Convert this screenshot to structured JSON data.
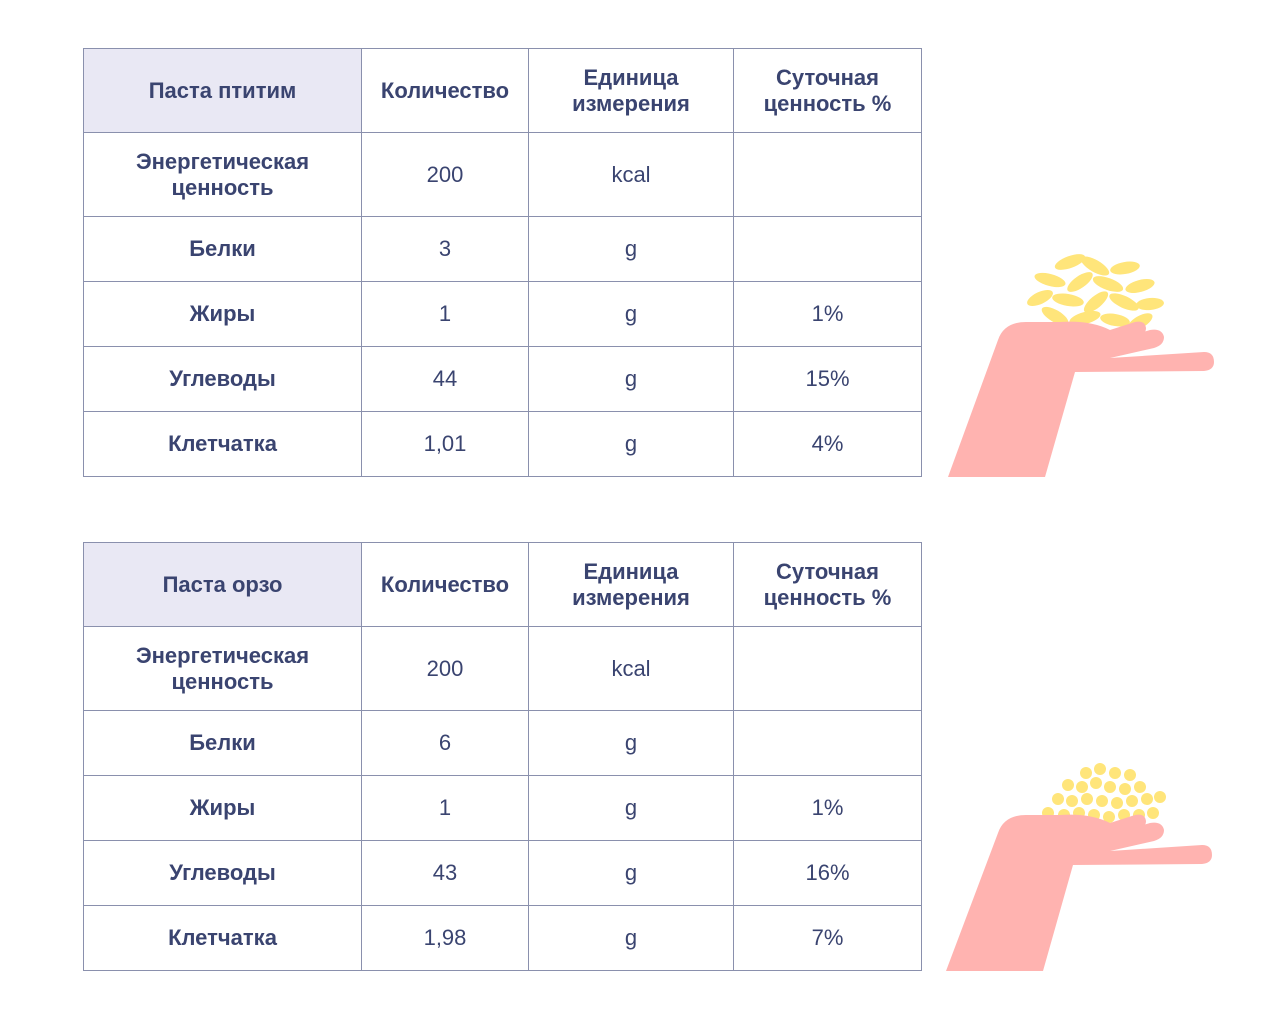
{
  "tables": [
    {
      "headers": [
        "Паста птитим",
        "Количество",
        "Единица измерения",
        "Суточная ценность %"
      ],
      "rows": [
        [
          "Энергетическая ценность",
          "200",
          "kcal",
          ""
        ],
        [
          "Белки",
          "3",
          "g",
          ""
        ],
        [
          "Жиры",
          "1",
          "g",
          "1%"
        ],
        [
          "Углеводы",
          "44",
          "g",
          "15%"
        ],
        [
          "Клетчатка",
          "1,01",
          "g",
          "4%"
        ]
      ]
    },
    {
      "headers": [
        "Паста орзо",
        "Количество",
        "Единица измерения",
        "Суточная ценность %"
      ],
      "rows": [
        [
          "Энергетическая ценность",
          "200",
          "kcal",
          ""
        ],
        [
          "Белки",
          "6",
          "g",
          ""
        ],
        [
          "Жиры",
          "1",
          "g",
          "1%"
        ],
        [
          "Углеводы",
          "43",
          "g",
          "16%"
        ],
        [
          "Клетчатка",
          "1,98",
          "g",
          "7%"
        ]
      ]
    }
  ],
  "colors": {
    "text": "#3a4470",
    "border": "#8a90ad",
    "header_highlight": "#e9e8f4",
    "hand": "#ffb3b0",
    "grain": "#ffe57a"
  },
  "illustrations": [
    "hand-with-ptitim-pasta-icon",
    "hand-with-orzo-pasta-icon"
  ]
}
